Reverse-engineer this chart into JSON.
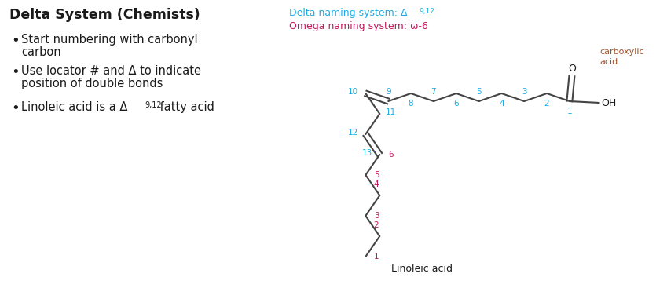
{
  "title_left": "Delta System (Chemists)",
  "bullet1_line1": "Start numbering with carbonyl",
  "bullet1_line2": "carbon",
  "bullet2_line1": "Use locator # and Δ to indicate",
  "bullet2_line2": "position of double bonds",
  "bullet3_pre": "Linoleic acid is a Δ",
  "bullet3_sup": "9,12",
  "bullet3_post": " fatty acid",
  "delta_pre": "Delta naming system: Δ",
  "delta_sup": "9,12",
  "omega_label": "Omega naming system: ω-6",
  "carboxylic_label": "carboxylic\nacid",
  "linoleic_label": "Linoleic acid",
  "O_label": "O",
  "OH_label": "OH",
  "color_cyan": "#1AACE8",
  "color_magenta": "#C2185B",
  "color_brown": "#A0522D",
  "color_black": "#1A1A1A",
  "background": "#FFFFFF",
  "bond_color": "#444444"
}
